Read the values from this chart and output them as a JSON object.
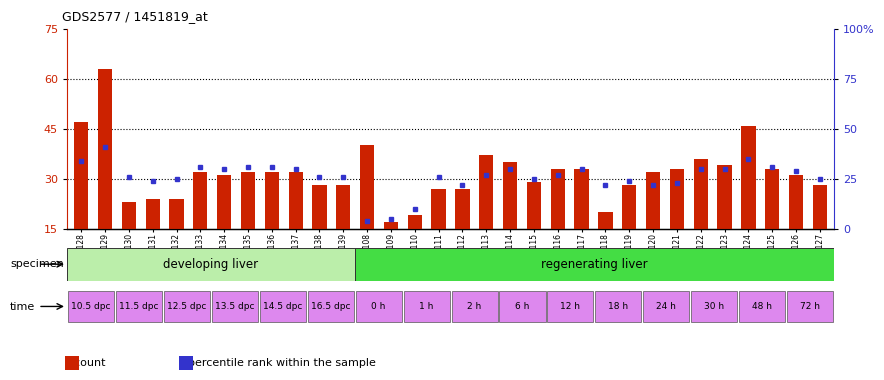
{
  "title": "GDS2577 / 1451819_at",
  "samples": [
    "GSM161128",
    "GSM161129",
    "GSM161130",
    "GSM161131",
    "GSM161132",
    "GSM161133",
    "GSM161134",
    "GSM161135",
    "GSM161136",
    "GSM161137",
    "GSM161138",
    "GSM161139",
    "GSM161108",
    "GSM161109",
    "GSM161110",
    "GSM161111",
    "GSM161112",
    "GSM161113",
    "GSM161114",
    "GSM161115",
    "GSM161116",
    "GSM161117",
    "GSM161118",
    "GSM161119",
    "GSM161120",
    "GSM161121",
    "GSM161122",
    "GSM161123",
    "GSM161124",
    "GSM161125",
    "GSM161126",
    "GSM161127"
  ],
  "count_values": [
    47,
    63,
    23,
    24,
    24,
    32,
    31,
    32,
    32,
    32,
    28,
    28,
    40,
    17,
    19,
    27,
    27,
    37,
    35,
    29,
    33,
    33,
    20,
    28,
    32,
    33,
    36,
    34,
    46,
    33,
    31,
    28
  ],
  "percentile_values": [
    34,
    41,
    26,
    24,
    25,
    31,
    30,
    31,
    31,
    30,
    26,
    26,
    4,
    5,
    10,
    26,
    22,
    27,
    30,
    25,
    27,
    30,
    22,
    24,
    22,
    23,
    30,
    30,
    35,
    31,
    29,
    25
  ],
  "ylim_left": [
    15,
    75
  ],
  "ylim_right": [
    0,
    100
  ],
  "yticks_left": [
    15,
    30,
    45,
    60,
    75
  ],
  "yticks_right": [
    0,
    25,
    50,
    75,
    100
  ],
  "grid_values": [
    30,
    45,
    60
  ],
  "bar_color": "#cc2200",
  "percentile_color": "#3333cc",
  "specimen_groups": [
    {
      "label": "developing liver",
      "start": 0,
      "end": 12,
      "color": "#bbeeaa"
    },
    {
      "label": "regenerating liver",
      "start": 12,
      "end": 32,
      "color": "#44dd44"
    }
  ],
  "time_labels": [
    {
      "label": "10.5 dpc",
      "start": 0,
      "end": 2
    },
    {
      "label": "11.5 dpc",
      "start": 2,
      "end": 4
    },
    {
      "label": "12.5 dpc",
      "start": 4,
      "end": 6
    },
    {
      "label": "13.5 dpc",
      "start": 6,
      "end": 8
    },
    {
      "label": "14.5 dpc",
      "start": 8,
      "end": 10
    },
    {
      "label": "16.5 dpc",
      "start": 10,
      "end": 12
    },
    {
      "label": "0 h",
      "start": 12,
      "end": 14
    },
    {
      "label": "1 h",
      "start": 14,
      "end": 16
    },
    {
      "label": "2 h",
      "start": 16,
      "end": 18
    },
    {
      "label": "6 h",
      "start": 18,
      "end": 20
    },
    {
      "label": "12 h",
      "start": 20,
      "end": 22
    },
    {
      "label": "18 h",
      "start": 22,
      "end": 24
    },
    {
      "label": "24 h",
      "start": 24,
      "end": 26
    },
    {
      "label": "30 h",
      "start": 26,
      "end": 28
    },
    {
      "label": "48 h",
      "start": 28,
      "end": 30
    },
    {
      "label": "72 h",
      "start": 30,
      "end": 32
    }
  ],
  "time_color": "#dd88ee",
  "specimen_label": "specimen",
  "time_label": "time",
  "legend_items": [
    {
      "color": "#cc2200",
      "label": "count"
    },
    {
      "color": "#3333cc",
      "label": "percentile rank within the sample"
    }
  ]
}
